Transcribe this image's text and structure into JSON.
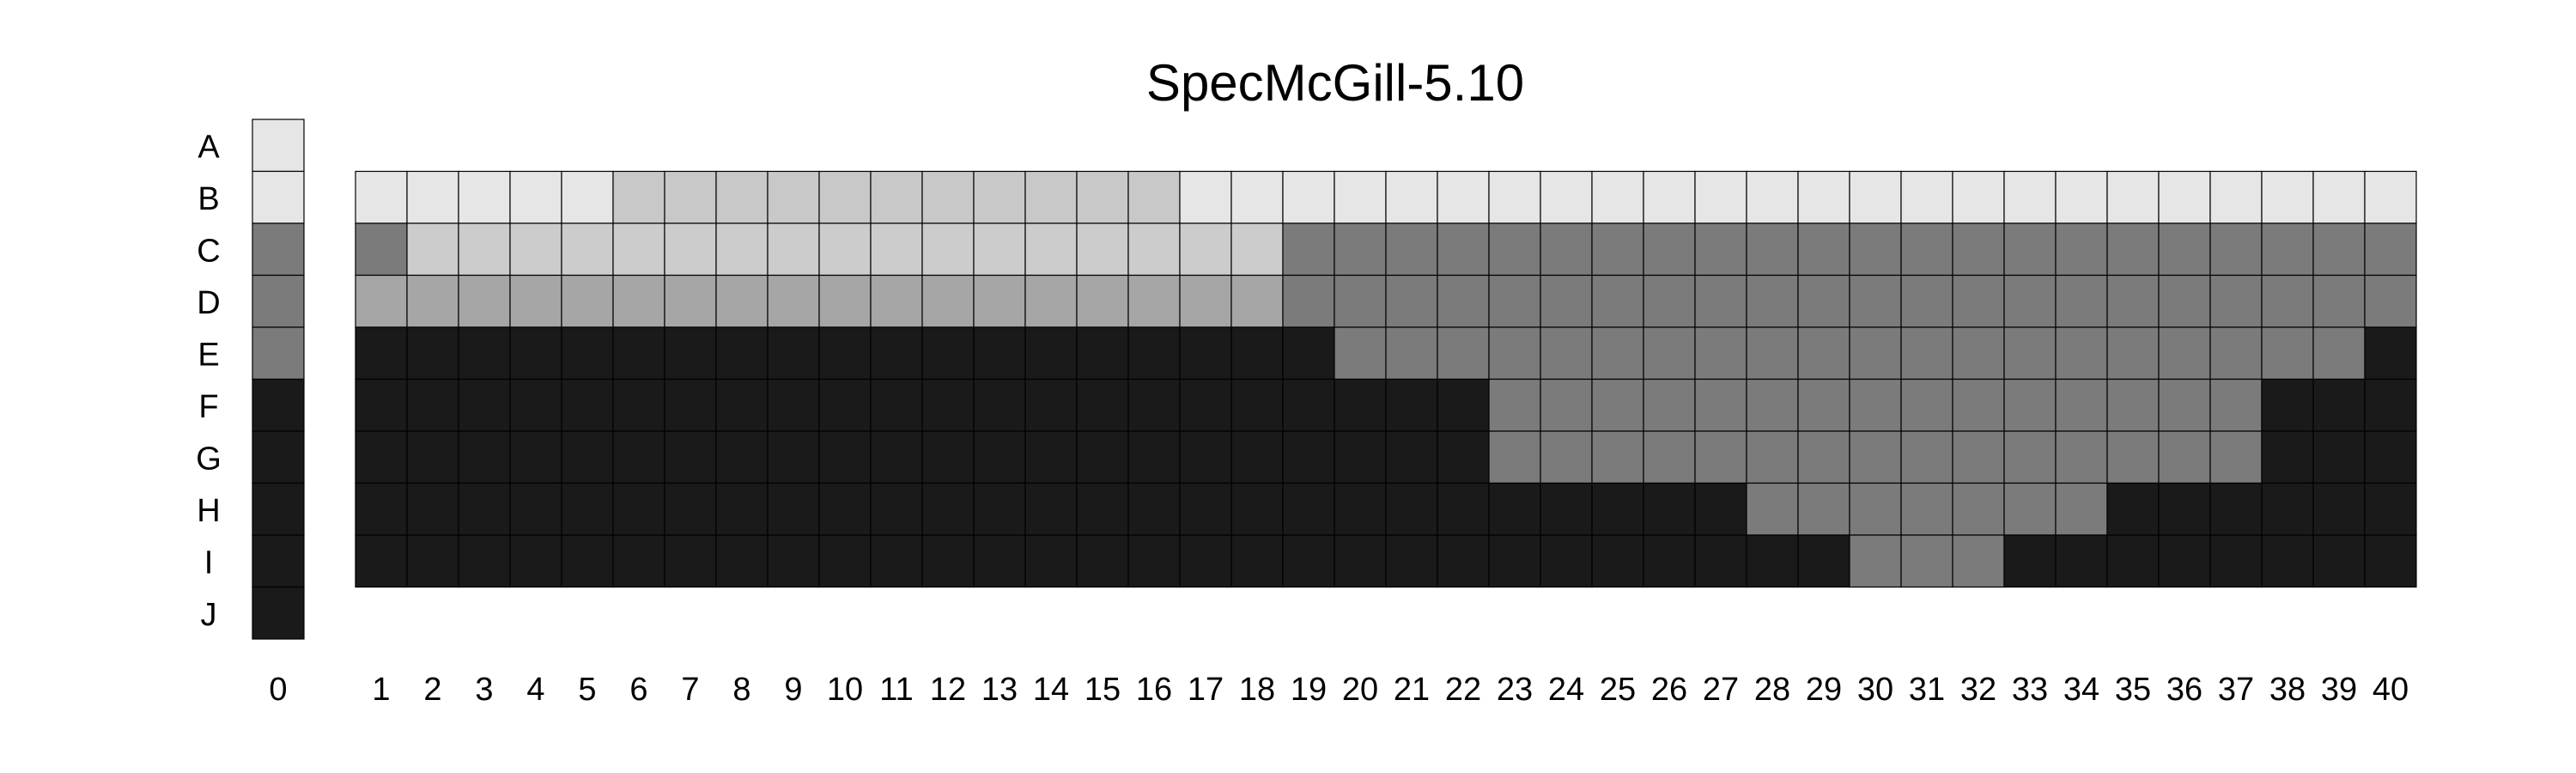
{
  "chart_data": {
    "type": "heatmap",
    "title": "SpecMcGill-5.10",
    "row_labels": [
      "A",
      "B",
      "C",
      "D",
      "E",
      "F",
      "G",
      "H",
      "I",
      "J"
    ],
    "column_labels": [
      "0",
      "1",
      "2",
      "3",
      "4",
      "5",
      "6",
      "7",
      "8",
      "9",
      "10",
      "11",
      "12",
      "13",
      "14",
      "15",
      "16",
      "17",
      "18",
      "19",
      "20",
      "21",
      "22",
      "23",
      "24",
      "25",
      "26",
      "27",
      "28",
      "29",
      "30",
      "31",
      "32",
      "33",
      "34",
      "35",
      "36",
      "37",
      "38",
      "39",
      "40"
    ],
    "palette": {
      "0": "#e6e6e6",
      "1": "#c8c8c8",
      "2": "#cccccc",
      "3": "#a6a6a6",
      "4": "#7b7b7b",
      "5": "#1a1a1a"
    },
    "column_zero": {
      "rows": [
        "A",
        "B",
        "C",
        "D",
        "E",
        "F",
        "G",
        "H",
        "I",
        "J"
      ],
      "values": [
        0,
        0,
        4,
        4,
        4,
        5,
        5,
        5,
        5,
        5
      ]
    },
    "grid": {
      "rows": [
        "B",
        "C",
        "D",
        "E",
        "F",
        "G",
        "H",
        "I"
      ],
      "columns": [
        "1",
        "2",
        "3",
        "4",
        "5",
        "6",
        "7",
        "8",
        "9",
        "10",
        "11",
        "12",
        "13",
        "14",
        "15",
        "16",
        "17",
        "18",
        "19",
        "20",
        "21",
        "22",
        "23",
        "24",
        "25",
        "26",
        "27",
        "28",
        "29",
        "30",
        "31",
        "32",
        "33",
        "34",
        "35",
        "36",
        "37",
        "38",
        "39",
        "40"
      ],
      "values": [
        [
          0,
          0,
          0,
          0,
          0,
          1,
          1,
          1,
          1,
          1,
          1,
          1,
          1,
          1,
          1,
          1,
          0,
          0,
          0,
          0,
          0,
          0,
          0,
          0,
          0,
          0,
          0,
          0,
          0,
          0,
          0,
          0,
          0,
          0,
          0,
          0,
          0,
          0,
          0,
          0
        ],
        [
          4,
          2,
          2,
          2,
          2,
          2,
          2,
          2,
          2,
          2,
          2,
          2,
          2,
          2,
          2,
          2,
          2,
          2,
          4,
          4,
          4,
          4,
          4,
          4,
          4,
          4,
          4,
          4,
          4,
          4,
          4,
          4,
          4,
          4,
          4,
          4,
          4,
          4,
          4,
          4
        ],
        [
          3,
          3,
          3,
          3,
          3,
          3,
          3,
          3,
          3,
          3,
          3,
          3,
          3,
          3,
          3,
          3,
          3,
          3,
          4,
          4,
          4,
          4,
          4,
          4,
          4,
          4,
          4,
          4,
          4,
          4,
          4,
          4,
          4,
          4,
          4,
          4,
          4,
          4,
          4,
          4
        ],
        [
          5,
          5,
          5,
          5,
          5,
          5,
          5,
          5,
          5,
          5,
          5,
          5,
          5,
          5,
          5,
          5,
          5,
          5,
          5,
          4,
          4,
          4,
          4,
          4,
          4,
          4,
          4,
          4,
          4,
          4,
          4,
          4,
          4,
          4,
          4,
          4,
          4,
          4,
          4,
          5
        ],
        [
          5,
          5,
          5,
          5,
          5,
          5,
          5,
          5,
          5,
          5,
          5,
          5,
          5,
          5,
          5,
          5,
          5,
          5,
          5,
          5,
          5,
          5,
          4,
          4,
          4,
          4,
          4,
          4,
          4,
          4,
          4,
          4,
          4,
          4,
          4,
          4,
          4,
          5,
          5,
          5
        ],
        [
          5,
          5,
          5,
          5,
          5,
          5,
          5,
          5,
          5,
          5,
          5,
          5,
          5,
          5,
          5,
          5,
          5,
          5,
          5,
          5,
          5,
          5,
          4,
          4,
          4,
          4,
          4,
          4,
          4,
          4,
          4,
          4,
          4,
          4,
          4,
          4,
          4,
          5,
          5,
          5
        ],
        [
          5,
          5,
          5,
          5,
          5,
          5,
          5,
          5,
          5,
          5,
          5,
          5,
          5,
          5,
          5,
          5,
          5,
          5,
          5,
          5,
          5,
          5,
          5,
          5,
          5,
          5,
          5,
          4,
          4,
          4,
          4,
          4,
          4,
          4,
          5,
          5,
          5,
          5,
          5,
          5
        ],
        [
          5,
          5,
          5,
          5,
          5,
          5,
          5,
          5,
          5,
          5,
          5,
          5,
          5,
          5,
          5,
          5,
          5,
          5,
          5,
          5,
          5,
          5,
          5,
          5,
          5,
          5,
          5,
          5,
          5,
          4,
          4,
          4,
          5,
          5,
          5,
          5,
          5,
          5,
          5,
          5
        ]
      ]
    }
  }
}
